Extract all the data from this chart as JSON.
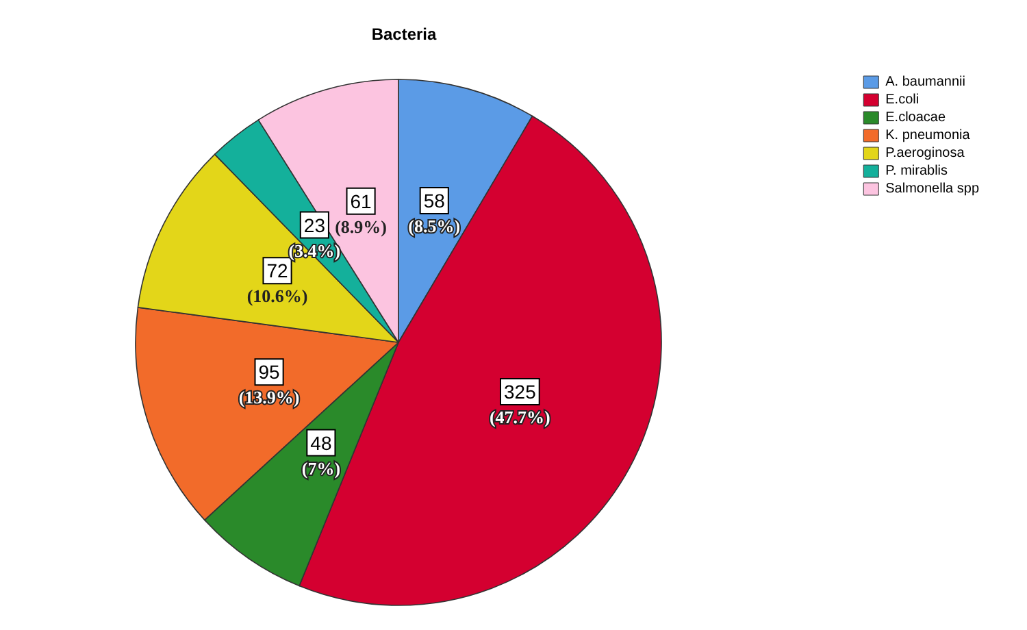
{
  "chart_data": {
    "type": "pie",
    "title": "Bacteria",
    "categories": [
      "A. baumannii",
      "E.coli",
      "E.cloacae",
      "K. pneumonia",
      "P.aeroginosa",
      "P. mirablis",
      "Salmonella spp"
    ],
    "values": [
      58,
      325,
      48,
      95,
      72,
      23,
      61
    ],
    "colors": [
      "#5b9be6",
      "#d40030",
      "#2a8a2a",
      "#f26b2a",
      "#e3d619",
      "#14b09b",
      "#fcc4e0"
    ],
    "value_labels": [
      "58 (8.5%)",
      "325 (47.7%)",
      "48 (7%)",
      "95 (13.9%)",
      "72 (10.6%)",
      "23 (3.4%)",
      "61 (8.9%)"
    ],
    "legend": "top right"
  }
}
